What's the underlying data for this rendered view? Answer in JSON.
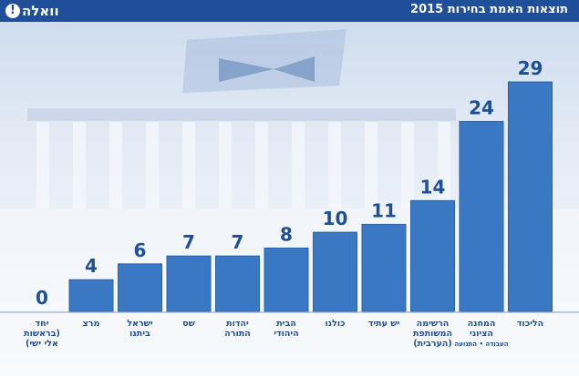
{
  "header": {
    "title": "תוצאות האמת בחירות 2015",
    "logo_text": "וואלה",
    "logo_mark": "!"
  },
  "colors": {
    "header": "#1f4f9a",
    "bar": "#3a78c4",
    "bar_dark": "#2a62a8",
    "text": "#1f4f9a"
  },
  "chart_data": {
    "type": "bar",
    "title": "תוצאות האמת בחירות 2015",
    "xlabel": "",
    "ylabel": "",
    "ylim": [
      0,
      29
    ],
    "grid": false,
    "categories": [
      {
        "lines": [
          "יחד",
          "(בראשות",
          "אלי ישי)"
        ]
      },
      {
        "lines": [
          "מרצ"
        ]
      },
      {
        "lines": [
          "ישראל",
          "ביתנו"
        ]
      },
      {
        "lines": [
          "שס"
        ]
      },
      {
        "lines": [
          "יהדות",
          "התורה"
        ]
      },
      {
        "lines": [
          "הבית",
          "היהודי"
        ]
      },
      {
        "lines": [
          "כולנו"
        ]
      },
      {
        "lines": [
          "יש עתיד"
        ]
      },
      {
        "lines": [
          "הרשימה",
          "המשותפת",
          "(הערבית)"
        ]
      },
      {
        "lines": [
          "המחנה",
          "הציוני"
        ],
        "sub": "העבודה • התנועה"
      },
      {
        "lines": [
          "הליכוד"
        ]
      }
    ],
    "values": [
      0,
      4,
      6,
      7,
      7,
      8,
      10,
      11,
      14,
      24,
      29
    ]
  }
}
